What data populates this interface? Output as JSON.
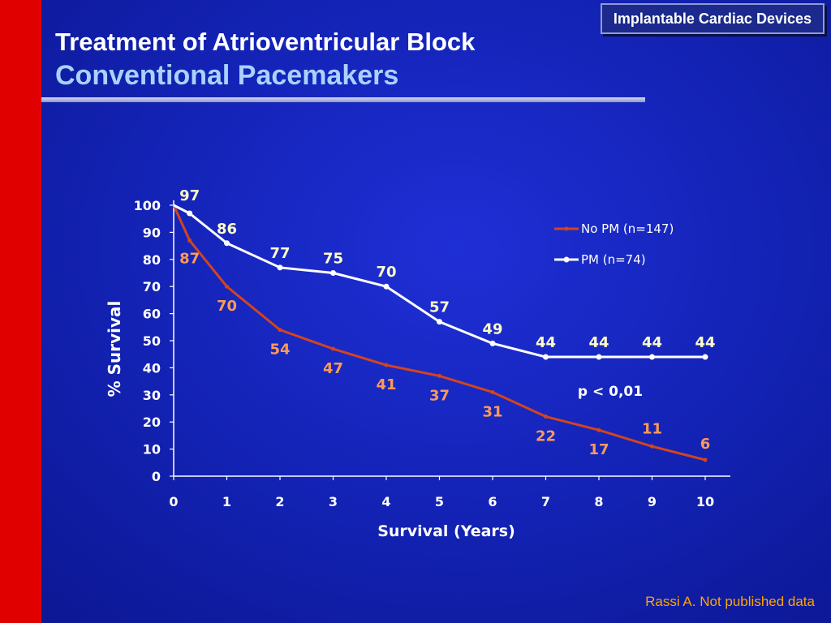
{
  "header": {
    "badge": "Implantable Cardiac Devices",
    "title_line1": "Treatment of Atrioventricular Block",
    "title_line2": "Conventional Pacemakers"
  },
  "footer": {
    "source": "Rassi A. Not published data"
  },
  "colors": {
    "background": "#1424b8",
    "red_bar": "#e00000",
    "pm_series": "#ffffff",
    "no_pm_series": "#d2451e",
    "no_pm_labels": "#ff9a55",
    "pm_labels": "#fffcc8"
  },
  "chart_data": {
    "type": "line",
    "xlabel": "Survival (Years)",
    "ylabel": "% Survival",
    "xlim": [
      0,
      10
    ],
    "ylim": [
      0,
      100
    ],
    "x_ticks": [
      "0",
      "1",
      "2",
      "3",
      "4",
      "5",
      "6",
      "7",
      "8",
      "9",
      "10"
    ],
    "y_ticks": [
      "0",
      "10",
      "20",
      "30",
      "40",
      "50",
      "60",
      "70",
      "80",
      "90",
      "100"
    ],
    "grid": false,
    "legend_position": "top-right",
    "annotation": "p < 0,01",
    "series": [
      {
        "name": "No PM (n=147)",
        "color": "#d2451e",
        "label_color": "#ff9a55",
        "points": [
          {
            "x": 0,
            "y": 100,
            "label": ""
          },
          {
            "x": 0.3,
            "y": 87,
            "label": "87"
          },
          {
            "x": 1,
            "y": 70,
            "label": "70"
          },
          {
            "x": 2,
            "y": 54,
            "label": "54"
          },
          {
            "x": 3,
            "y": 47,
            "label": "47"
          },
          {
            "x": 4,
            "y": 41,
            "label": "41"
          },
          {
            "x": 5,
            "y": 37,
            "label": "37"
          },
          {
            "x": 6,
            "y": 31,
            "label": "31"
          },
          {
            "x": 7,
            "y": 22,
            "label": "22"
          },
          {
            "x": 8,
            "y": 17,
            "label": "17"
          },
          {
            "x": 9,
            "y": 11,
            "label": "11"
          },
          {
            "x": 10,
            "y": 6,
            "label": "6"
          }
        ]
      },
      {
        "name": "PM (n=74)",
        "color": "#ffffff",
        "label_color": "#fffcc8",
        "points": [
          {
            "x": 0,
            "y": 100,
            "label": ""
          },
          {
            "x": 0.3,
            "y": 97,
            "label": "97"
          },
          {
            "x": 1,
            "y": 86,
            "label": "86"
          },
          {
            "x": 2,
            "y": 77,
            "label": "77"
          },
          {
            "x": 3,
            "y": 75,
            "label": "75"
          },
          {
            "x": 4,
            "y": 70,
            "label": "70"
          },
          {
            "x": 5,
            "y": 57,
            "label": "57"
          },
          {
            "x": 6,
            "y": 49,
            "label": "49"
          },
          {
            "x": 7,
            "y": 44,
            "label": "44"
          },
          {
            "x": 8,
            "y": 44,
            "label": "44"
          },
          {
            "x": 9,
            "y": 44,
            "label": "44"
          },
          {
            "x": 10,
            "y": 44,
            "label": "44"
          }
        ]
      }
    ]
  }
}
